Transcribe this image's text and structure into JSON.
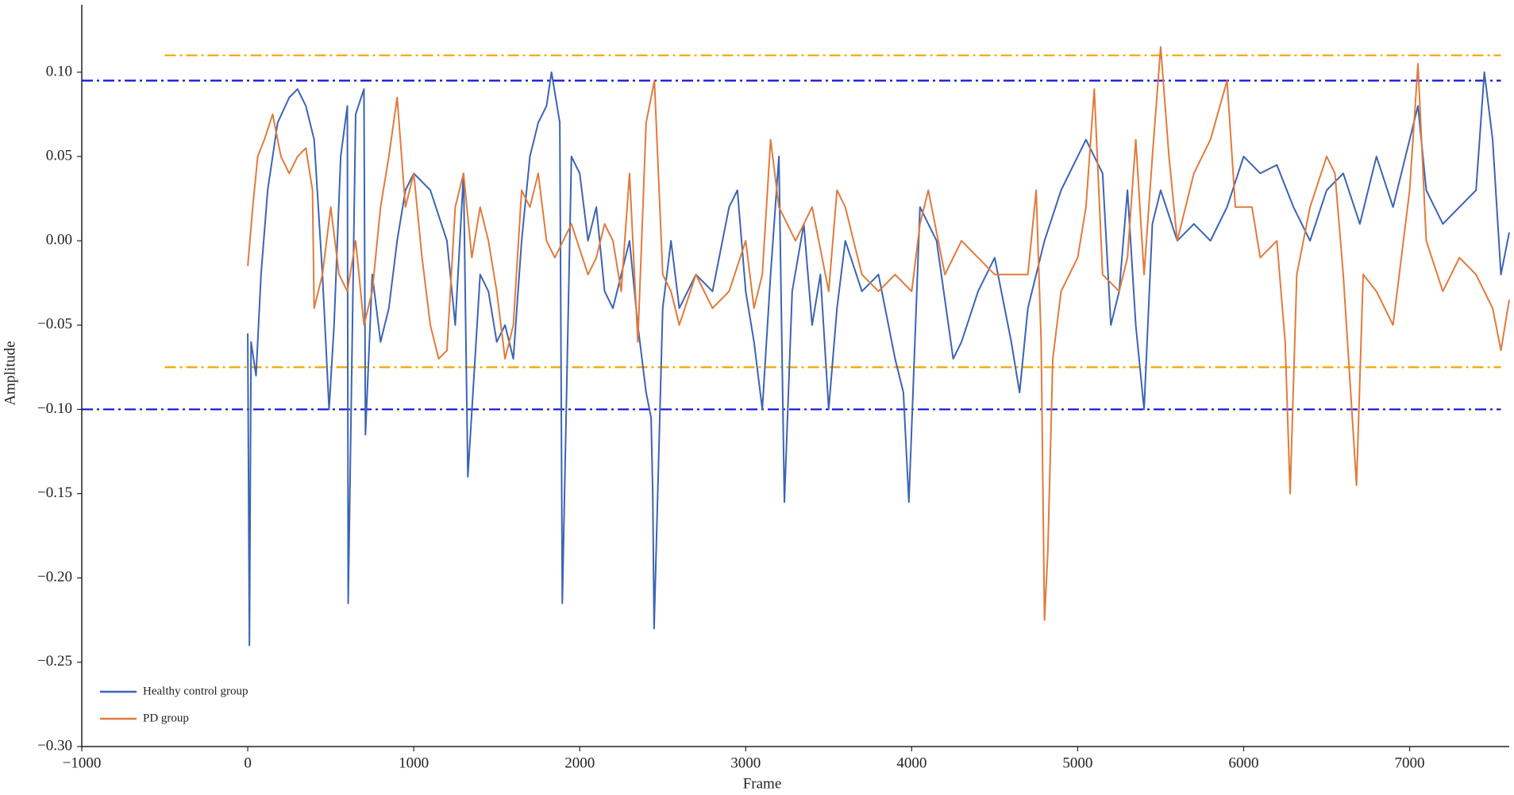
{
  "chart_data": {
    "type": "line",
    "x_label": "Frame",
    "y_label": "Amplitude",
    "xlim": [
      -1000,
      7600
    ],
    "xticks": [
      {
        "value": -1000,
        "label": "−1000"
      },
      0,
      1000,
      2000,
      3000,
      4000,
      5000,
      6000,
      7000
    ],
    "ylim": [
      -0.3,
      0.14
    ],
    "yticks": [
      {
        "value": 0.1,
        "label": "0.10"
      },
      {
        "value": 0.05,
        "label": "0.05"
      },
      {
        "value": 0.0,
        "label": "0.00"
      },
      {
        "value": -0.05,
        "label": "−0.05"
      },
      {
        "value": -0.1,
        "label": "−0.10"
      },
      {
        "value": -0.15,
        "label": "−0.15"
      },
      {
        "value": -0.2,
        "label": "−0.20"
      },
      {
        "value": -0.25,
        "label": "−0.25"
      },
      {
        "value": -0.3,
        "label": "−0.30"
      }
    ],
    "grid": false,
    "legend": "lower left",
    "reference_lines": [
      {
        "value": 0.11,
        "color": "#f5a300",
        "x_range": [
          -500,
          7550
        ]
      },
      {
        "value": 0.095,
        "color": "#1010d8",
        "x_range": [
          -1000,
          7550
        ]
      },
      {
        "value": -0.075,
        "color": "#f5a300",
        "x_range": [
          -500,
          7550
        ]
      },
      {
        "value": -0.1,
        "color": "#1010d8",
        "x_range": [
          -1000,
          7550
        ]
      }
    ],
    "series": [
      {
        "name": "Healthy control group",
        "color": "#3c64b4",
        "x": [
          0,
          10,
          20,
          50,
          80,
          120,
          180,
          250,
          300,
          350,
          400,
          450,
          490,
          520,
          560,
          600,
          605,
          650,
          700,
          709,
          750,
          800,
          850,
          900,
          950,
          1000,
          1100,
          1200,
          1250,
          1300,
          1326,
          1400,
          1450,
          1500,
          1550,
          1600,
          1650,
          1700,
          1750,
          1800,
          1830,
          1880,
          1895,
          1950,
          2000,
          2050,
          2100,
          2150,
          2200,
          2300,
          2350,
          2400,
          2430,
          2440,
          2448,
          2500,
          2550,
          2600,
          2700,
          2800,
          2900,
          2950,
          3000,
          3050,
          3100,
          3150,
          3200,
          3233,
          3280,
          3350,
          3400,
          3450,
          3500,
          3550,
          3600,
          3700,
          3800,
          3900,
          3950,
          3983,
          4050,
          4150,
          4250,
          4300,
          4400,
          4500,
          4600,
          4650,
          4700,
          4800,
          4900,
          5000,
          5050,
          5150,
          5200,
          5250,
          5300,
          5350,
          5400,
          5450,
          5500,
          5600,
          5700,
          5800,
          5900,
          6000,
          6100,
          6200,
          6300,
          6400,
          6500,
          6600,
          6700,
          6800,
          6900,
          7000,
          7050,
          7100,
          7200,
          7300,
          7400,
          7450,
          7500,
          7550,
          7600
        ],
        "values": [
          -0.055,
          -0.24,
          -0.06,
          -0.08,
          -0.02,
          0.03,
          0.07,
          0.085,
          0.09,
          0.08,
          0.06,
          -0.02,
          -0.1,
          -0.05,
          0.05,
          0.08,
          -0.215,
          0.075,
          0.09,
          -0.115,
          -0.02,
          -0.06,
          -0.04,
          0.0,
          0.03,
          0.04,
          0.03,
          0.0,
          -0.05,
          0.04,
          -0.14,
          -0.02,
          -0.03,
          -0.06,
          -0.05,
          -0.07,
          0.0,
          0.05,
          0.07,
          0.08,
          0.1,
          0.07,
          -0.215,
          0.05,
          0.04,
          0.0,
          0.02,
          -0.03,
          -0.04,
          0.0,
          -0.05,
          -0.09,
          -0.105,
          -0.15,
          -0.23,
          -0.04,
          0.0,
          -0.04,
          -0.02,
          -0.03,
          0.02,
          0.03,
          -0.03,
          -0.06,
          -0.1,
          -0.02,
          0.05,
          -0.155,
          -0.03,
          0.01,
          -0.05,
          -0.02,
          -0.1,
          -0.04,
          0.0,
          -0.03,
          -0.02,
          -0.07,
          -0.09,
          -0.155,
          0.02,
          0.0,
          -0.07,
          -0.06,
          -0.03,
          -0.01,
          -0.06,
          -0.09,
          -0.04,
          0.0,
          0.03,
          0.05,
          0.06,
          0.04,
          -0.05,
          -0.03,
          0.03,
          -0.05,
          -0.1,
          0.01,
          0.03,
          0.0,
          0.01,
          0.0,
          0.02,
          0.05,
          0.04,
          0.045,
          0.02,
          0.0,
          0.03,
          0.04,
          0.01,
          0.05,
          0.02,
          0.06,
          0.08,
          0.03,
          0.01,
          0.02,
          0.03,
          0.1,
          0.06,
          -0.02,
          0.005
        ]
      },
      {
        "name": "PD group",
        "color": "#e07b3c",
        "x": [
          0,
          30,
          60,
          100,
          150,
          200,
          250,
          300,
          350,
          390,
          400,
          450,
          500,
          550,
          600,
          650,
          700,
          750,
          800,
          850,
          900,
          950,
          1000,
          1050,
          1100,
          1150,
          1200,
          1250,
          1300,
          1350,
          1400,
          1450,
          1500,
          1550,
          1600,
          1650,
          1700,
          1750,
          1800,
          1850,
          1900,
          1950,
          2050,
          2100,
          2150,
          2200,
          2250,
          2300,
          2350,
          2400,
          2450,
          2500,
          2550,
          2600,
          2700,
          2800,
          2900,
          3000,
          3050,
          3100,
          3150,
          3200,
          3250,
          3300,
          3400,
          3500,
          3550,
          3600,
          3700,
          3800,
          3900,
          4000,
          4050,
          4100,
          4200,
          4300,
          4400,
          4500,
          4600,
          4700,
          4750,
          4780,
          4800,
          4820,
          4850,
          4900,
          5000,
          5050,
          5100,
          5150,
          5250,
          5300,
          5350,
          5400,
          5450,
          5500,
          5550,
          5600,
          5700,
          5800,
          5900,
          5950,
          6050,
          6100,
          6200,
          6250,
          6280,
          6320,
          6400,
          6500,
          6550,
          6600,
          6680,
          6720,
          6800,
          6900,
          7000,
          7050,
          7100,
          7200,
          7300,
          7400,
          7500,
          7550,
          7600
        ],
        "values": [
          -0.015,
          0.02,
          0.05,
          0.06,
          0.075,
          0.05,
          0.04,
          0.05,
          0.055,
          0.03,
          -0.04,
          -0.02,
          0.02,
          -0.02,
          -0.03,
          0.0,
          -0.05,
          -0.03,
          0.02,
          0.05,
          0.085,
          0.02,
          0.04,
          -0.01,
          -0.05,
          -0.07,
          -0.065,
          0.02,
          0.04,
          -0.01,
          0.02,
          0.0,
          -0.03,
          -0.07,
          -0.05,
          0.03,
          0.02,
          0.04,
          0.0,
          -0.01,
          0.0,
          0.01,
          -0.02,
          -0.01,
          0.01,
          0.0,
          -0.03,
          0.04,
          -0.06,
          0.07,
          0.095,
          -0.02,
          -0.03,
          -0.05,
          -0.02,
          -0.04,
          -0.03,
          0.0,
          -0.04,
          -0.02,
          0.06,
          0.02,
          0.01,
          0.0,
          0.02,
          -0.03,
          0.03,
          0.02,
          -0.02,
          -0.03,
          -0.02,
          -0.03,
          0.01,
          0.03,
          -0.02,
          0.0,
          -0.01,
          -0.02,
          -0.02,
          -0.02,
          0.03,
          -0.06,
          -0.225,
          -0.185,
          -0.07,
          -0.03,
          -0.01,
          0.02,
          0.09,
          -0.02,
          -0.03,
          -0.01,
          0.06,
          -0.02,
          0.05,
          0.115,
          0.05,
          0.0,
          0.04,
          0.06,
          0.095,
          0.02,
          0.02,
          -0.01,
          0.0,
          -0.06,
          -0.15,
          -0.02,
          0.02,
          0.05,
          0.04,
          -0.02,
          -0.145,
          -0.02,
          -0.03,
          -0.05,
          0.03,
          0.105,
          0.0,
          -0.03,
          -0.01,
          -0.02,
          -0.04,
          -0.065,
          -0.035
        ]
      }
    ]
  }
}
